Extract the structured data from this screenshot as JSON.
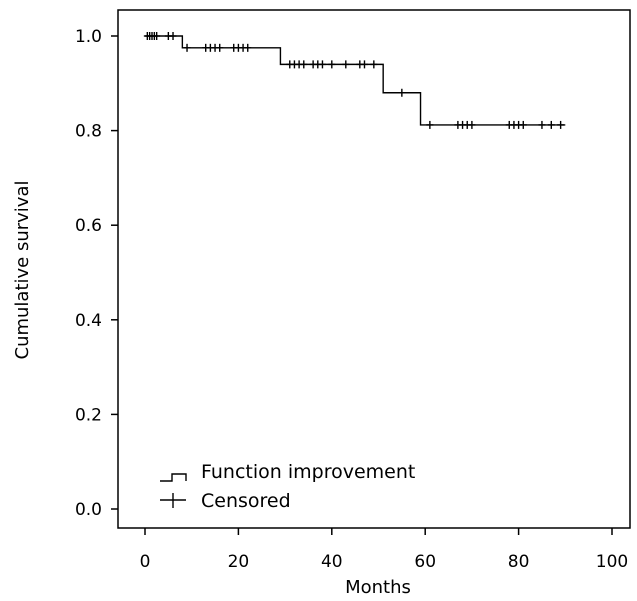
{
  "chart_data": {
    "type": "line",
    "subtype": "kaplan-meier-survival",
    "title": "",
    "xlabel": "Months",
    "ylabel": "Cumulative survival",
    "xlim": [
      0,
      100
    ],
    "ylim": [
      0.0,
      1.0
    ],
    "xticks": [
      "0",
      "20",
      "40",
      "60",
      "80",
      "100"
    ],
    "yticks": [
      "0.0",
      "0.2",
      "0.4",
      "0.6",
      "0.8",
      "1.0"
    ],
    "grid": false,
    "legend_position": "bottom-left",
    "series": [
      {
        "name": "Function improvement",
        "style": "step",
        "color": "#000000",
        "x": [
          0,
          8,
          29,
          51,
          59,
          90
        ],
        "y": [
          1.0,
          0.975,
          0.94,
          0.88,
          0.812,
          0.812
        ]
      },
      {
        "name": "Censored",
        "style": "marker-plus",
        "color": "#000000",
        "x": [
          0.5,
          1,
          1.5,
          2,
          2.5,
          5,
          6,
          9,
          13,
          14,
          15,
          16,
          19,
          20,
          21,
          22,
          31,
          32,
          33,
          34,
          36,
          37,
          38,
          40,
          43,
          46,
          47,
          49,
          55,
          61,
          67,
          68,
          69,
          70,
          78,
          79,
          80,
          81,
          85,
          87,
          89
        ],
        "y": [
          1.0,
          1.0,
          1.0,
          1.0,
          1.0,
          1.0,
          1.0,
          0.975,
          0.975,
          0.975,
          0.975,
          0.975,
          0.975,
          0.975,
          0.975,
          0.975,
          0.94,
          0.94,
          0.94,
          0.94,
          0.94,
          0.94,
          0.94,
          0.94,
          0.94,
          0.94,
          0.94,
          0.94,
          0.88,
          0.812,
          0.812,
          0.812,
          0.812,
          0.812,
          0.812,
          0.812,
          0.812,
          0.812,
          0.812,
          0.812,
          0.812
        ]
      }
    ]
  }
}
